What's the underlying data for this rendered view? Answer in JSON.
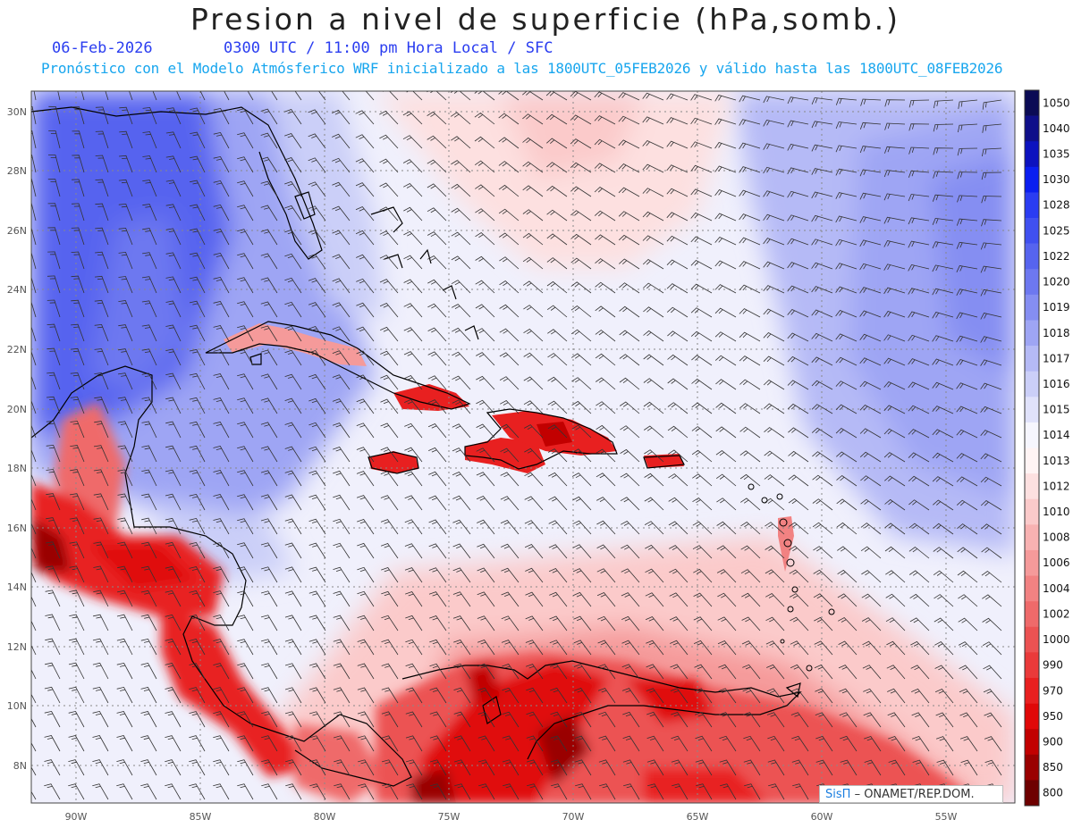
{
  "header": {
    "title": "Presion a nivel de superficie (hPa,somb.)",
    "date": "06-Feb-2026",
    "time_line": "0300 UTC / 11:00 pm Hora Local / SFC",
    "model_line": "Pronóstico con el Modelo Atmósferico WRF inicializado a las 1800UTC_05FEB2026 y válido hasta las  1800UTC_08FEB2026"
  },
  "map": {
    "lat_labels": [
      "30N",
      "28N",
      "26N",
      "24N",
      "22N",
      "20N",
      "18N",
      "16N",
      "14N",
      "12N",
      "10N",
      "8N"
    ],
    "lon_labels": [
      "90W",
      "85W",
      "80W",
      "75W",
      "70W",
      "65W",
      "60W",
      "55W"
    ]
  },
  "colorbar": {
    "levels": [
      {
        "label": "1050",
        "color": "#0b0b55"
      },
      {
        "label": "1040",
        "color": "#0f0f8a"
      },
      {
        "label": "1035",
        "color": "#0c12bf"
      },
      {
        "label": "1030",
        "color": "#0a1ef0"
      },
      {
        "label": "1028",
        "color": "#2a3cf2"
      },
      {
        "label": "1025",
        "color": "#4050f0"
      },
      {
        "label": "1022",
        "color": "#5664ef"
      },
      {
        "label": "1020",
        "color": "#6d78f0"
      },
      {
        "label": "1019",
        "color": "#858ef2"
      },
      {
        "label": "1018",
        "color": "#9ea5f4"
      },
      {
        "label": "1017",
        "color": "#b5baf6"
      },
      {
        "label": "1016",
        "color": "#cbcff8"
      },
      {
        "label": "1015",
        "color": "#e0e2fb"
      },
      {
        "label": "1014",
        "color": "#f6f6fe"
      },
      {
        "label": "1013",
        "color": "#fff4f4"
      },
      {
        "label": "1012",
        "color": "#fde0e0"
      },
      {
        "label": "1010",
        "color": "#fbcaca"
      },
      {
        "label": "1008",
        "color": "#f8b2b2"
      },
      {
        "label": "1006",
        "color": "#f59a9a"
      },
      {
        "label": "1004",
        "color": "#f28282"
      },
      {
        "label": "1002",
        "color": "#ef6a6a"
      },
      {
        "label": "1000",
        "color": "#ec5252"
      },
      {
        "label": "990",
        "color": "#ea3a3a"
      },
      {
        "label": "970",
        "color": "#e82020"
      },
      {
        "label": "950",
        "color": "#e00808"
      },
      {
        "label": "900",
        "color": "#c20000"
      },
      {
        "label": "850",
        "color": "#9a0000"
      },
      {
        "label": "800",
        "color": "#6e0000"
      }
    ]
  },
  "credit": {
    "brand": "SisΠ",
    "text": "– ONAMET/REP.DOM."
  }
}
